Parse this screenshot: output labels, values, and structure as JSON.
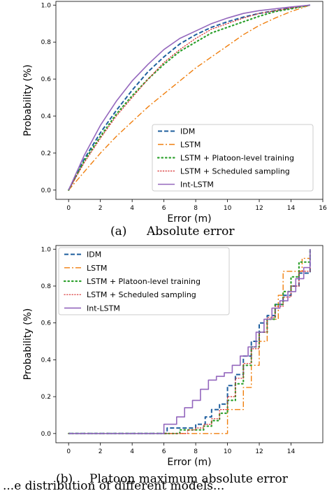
{
  "figure_caption_partial": "...e distribution of different models...",
  "series_colors": {
    "IDM": "#1f5f9e",
    "LSTM": "#f07f0e",
    "LSTM + Platoon-level training": "#2ca02c",
    "LSTM + Scheduled sampling": "#d62728",
    "Int-LSTM": "#9467bd"
  },
  "chart_data": [
    {
      "type": "line",
      "subplot_label": "(a)",
      "caption": "Absolute error",
      "xlabel": "Error (m)",
      "ylabel": "Probability (%)",
      "xlim": [
        -0.8,
        16
      ],
      "ylim": [
        -0.05,
        1.02
      ],
      "xticks": [
        0,
        2,
        4,
        6,
        8,
        10,
        12,
        14,
        16
      ],
      "yticks": [
        0.0,
        0.2,
        0.4,
        0.6,
        0.8,
        1.0
      ],
      "ytick_labels": [
        "0.0",
        "0.2",
        "0.4",
        "0.6",
        "0.8",
        "1.0"
      ],
      "grid": false,
      "legend_position": "lower-right",
      "series": [
        {
          "name": "IDM",
          "style": "dashed",
          "x": [
            0,
            1,
            2,
            3,
            4,
            5,
            6,
            7,
            8,
            9,
            10,
            11,
            12,
            13,
            14,
            15.2
          ],
          "y": [
            0,
            0.17,
            0.31,
            0.43,
            0.54,
            0.64,
            0.72,
            0.79,
            0.84,
            0.88,
            0.91,
            0.935,
            0.955,
            0.97,
            0.985,
            1.0
          ]
        },
        {
          "name": "LSTM",
          "style": "dashdot",
          "x": [
            0,
            1,
            2,
            3,
            4,
            5,
            6,
            7,
            8,
            9,
            10,
            11,
            12,
            13,
            14,
            15.2
          ],
          "y": [
            0,
            0.1,
            0.2,
            0.29,
            0.37,
            0.45,
            0.52,
            0.59,
            0.66,
            0.72,
            0.78,
            0.84,
            0.89,
            0.93,
            0.965,
            1.0
          ]
        },
        {
          "name": "LSTM + Platoon-level training",
          "style": "dashdotdot",
          "x": [
            0,
            1,
            2,
            3,
            4,
            5,
            6,
            7,
            8,
            9,
            10,
            11,
            12,
            13,
            14,
            15.2
          ],
          "y": [
            0,
            0.16,
            0.29,
            0.41,
            0.51,
            0.6,
            0.68,
            0.75,
            0.8,
            0.85,
            0.88,
            0.91,
            0.94,
            0.965,
            0.98,
            1.0
          ]
        },
        {
          "name": "LSTM + Scheduled sampling",
          "style": "dotted",
          "x": [
            0,
            1,
            2,
            3,
            4,
            5,
            6,
            7,
            8,
            9,
            10,
            11,
            12,
            13,
            14,
            15.2
          ],
          "y": [
            0,
            0.15,
            0.28,
            0.4,
            0.5,
            0.6,
            0.69,
            0.76,
            0.82,
            0.87,
            0.9,
            0.93,
            0.955,
            0.97,
            0.985,
            1.0
          ]
        },
        {
          "name": "Int-LSTM",
          "style": "solid",
          "x": [
            0,
            1,
            2,
            3,
            4,
            5,
            6,
            7,
            8,
            9,
            10,
            11,
            12,
            13,
            14,
            15.2
          ],
          "y": [
            0,
            0.19,
            0.35,
            0.48,
            0.59,
            0.68,
            0.76,
            0.82,
            0.86,
            0.9,
            0.93,
            0.955,
            0.97,
            0.98,
            0.99,
            1.0
          ]
        }
      ]
    },
    {
      "type": "line",
      "subplot_label": "(b)",
      "caption": "Platoon maximum absolute error",
      "xlabel": "Error (m)",
      "ylabel": "Probability (%)",
      "xlim": [
        -0.8,
        16
      ],
      "ylim": [
        -0.05,
        1.02
      ],
      "xticks": [
        0,
        2,
        4,
        6,
        8,
        10,
        12,
        14
      ],
      "yticks": [
        0.0,
        0.2,
        0.4,
        0.6,
        0.8,
        1.0
      ],
      "ytick_labels": [
        "0.0",
        "0.2",
        "0.4",
        "0.6",
        "0.8",
        "1.0"
      ],
      "grid": false,
      "legend_position": "upper-left",
      "series": [
        {
          "name": "IDM",
          "style": "dashed",
          "x": [
            0,
            5.8,
            6.2,
            7.5,
            8.0,
            8.6,
            9.0,
            9.5,
            10.0,
            10.5,
            11.0,
            11.5,
            12.0,
            12.5,
            13.0,
            13.5,
            14.0,
            14.5,
            15.2
          ],
          "y": [
            0,
            0,
            0.03,
            0.03,
            0.05,
            0.09,
            0.13,
            0.16,
            0.26,
            0.32,
            0.42,
            0.5,
            0.6,
            0.64,
            0.7,
            0.75,
            0.8,
            0.87,
            1.0
          ]
        },
        {
          "name": "LSTM",
          "style": "dashdot",
          "x": [
            0,
            9.8,
            10.0,
            10.8,
            11.0,
            11.5,
            12.0,
            12.5,
            13.0,
            13.2,
            13.5,
            14.0,
            14.5,
            14.7,
            15.2
          ],
          "y": [
            0,
            0,
            0.13,
            0.13,
            0.25,
            0.37,
            0.5,
            0.62,
            0.62,
            0.75,
            0.88,
            0.88,
            0.88,
            0.95,
            1.0
          ]
        },
        {
          "name": "LSTM + Platoon-level training",
          "style": "dashdotdot",
          "x": [
            0,
            6.5,
            7.0,
            8.0,
            8.5,
            9.0,
            9.5,
            10.0,
            10.5,
            11.0,
            11.5,
            12.0,
            12.5,
            13.0,
            13.5,
            14.0,
            14.5,
            15.2
          ],
          "y": [
            0,
            0,
            0.02,
            0.02,
            0.04,
            0.07,
            0.11,
            0.18,
            0.27,
            0.37,
            0.47,
            0.55,
            0.62,
            0.7,
            0.77,
            0.85,
            0.93,
            1.0
          ]
        },
        {
          "name": "LSTM + Scheduled sampling",
          "style": "dotted",
          "x": [
            0,
            7.0,
            7.5,
            8.0,
            8.5,
            9.0,
            9.5,
            10.0,
            10.5,
            11.0,
            11.5,
            12.0,
            12.5,
            13.0,
            13.5,
            14.0,
            14.5,
            15.2
          ],
          "y": [
            0,
            0,
            0.02,
            0.03,
            0.05,
            0.08,
            0.13,
            0.2,
            0.3,
            0.38,
            0.46,
            0.55,
            0.63,
            0.69,
            0.74,
            0.8,
            0.88,
            1.0
          ]
        },
        {
          "name": "Int-LSTM",
          "style": "solid",
          "x": [
            0,
            5.3,
            6.0,
            6.8,
            7.3,
            7.8,
            8.3,
            8.8,
            9.3,
            9.8,
            10.3,
            10.8,
            11.3,
            11.8,
            12.3,
            12.8,
            13.3,
            13.8,
            14.3,
            14.8,
            15.2
          ],
          "y": [
            0,
            0,
            0.05,
            0.09,
            0.14,
            0.18,
            0.24,
            0.29,
            0.31,
            0.33,
            0.37,
            0.42,
            0.47,
            0.55,
            0.62,
            0.68,
            0.72,
            0.77,
            0.84,
            0.9,
            1.0
          ]
        }
      ]
    }
  ]
}
